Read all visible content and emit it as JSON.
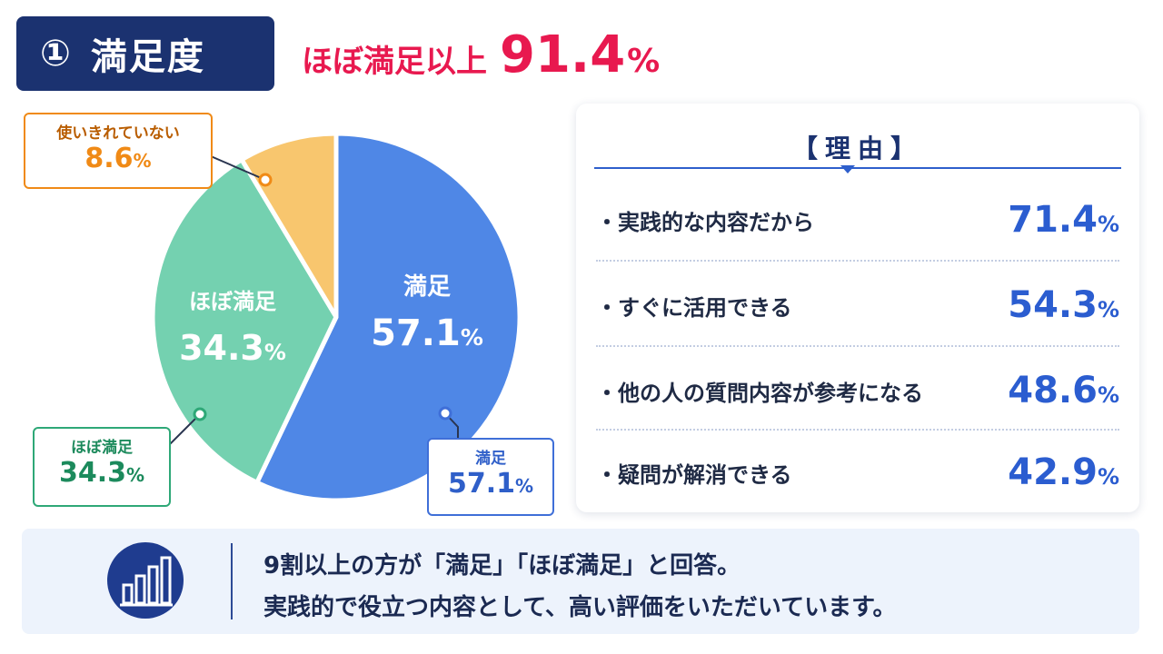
{
  "header": {
    "number": "①",
    "title": "満足度",
    "headline_label": "ほぼ満足以上",
    "headline_value": "91.4",
    "headline_unit": "%"
  },
  "chart_data": {
    "type": "pie",
    "title": "",
    "unit": "%",
    "slices": [
      {
        "label": "満足",
        "value": 57.1,
        "color": "#4f87e6"
      },
      {
        "label": "ほぼ満足",
        "value": 34.3,
        "color": "#74d1b0"
      },
      {
        "label": "使いきれていない",
        "value": 8.6,
        "color": "#f8c66e"
      }
    ]
  },
  "callouts": {
    "unused": {
      "label": "使いきれていない",
      "value": "8.6",
      "unit": "%"
    },
    "mostly": {
      "label": "ほぼ満足",
      "value": "34.3",
      "unit": "%"
    },
    "satisfied": {
      "label": "満足",
      "value": "57.1",
      "unit": "%"
    }
  },
  "reasons": {
    "title": "【理由】",
    "items": [
      {
        "label": "・実践的な内容だから",
        "value": "71.4",
        "unit": "%"
      },
      {
        "label": "・すぐに活用できる",
        "value": "54.3",
        "unit": "%"
      },
      {
        "label": "・他の人の質問内容が参考になる",
        "value": "48.6",
        "unit": "%"
      },
      {
        "label": "・疑問が解消できる",
        "value": "42.9",
        "unit": "%"
      }
    ]
  },
  "summary": {
    "line1": "9割以上の方が「満足」「ほぼ満足」と回答。",
    "line2": "実践的で役立つ内容として、高い評価をいただいています。",
    "icon": "bar-chart-icon"
  }
}
